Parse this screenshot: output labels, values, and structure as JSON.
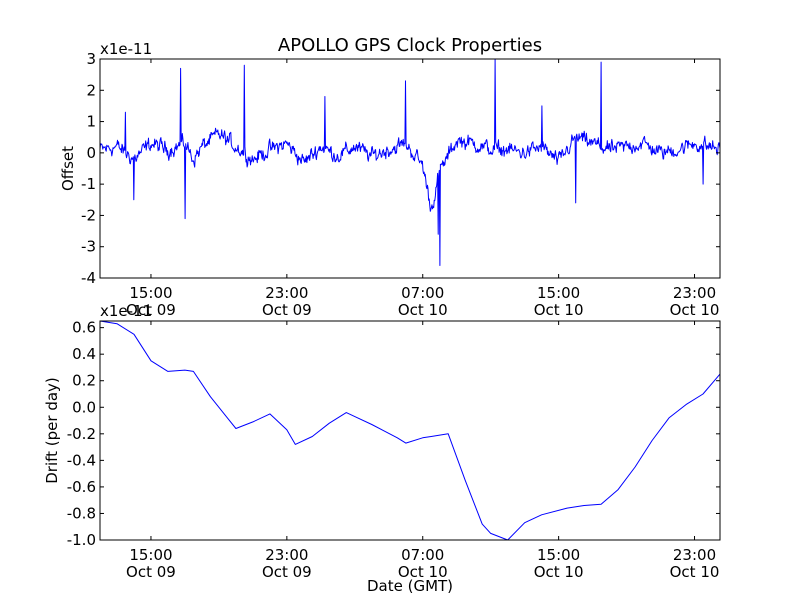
{
  "chart_data": [
    {
      "type": "line",
      "title": "APOLLO GPS Clock Properties",
      "xlabel": "",
      "ylabel": "Offset",
      "offset_text": "x1e-11",
      "xlim": [
        "2009-10-09 12:00",
        "2009-10-11 00:30"
      ],
      "ylim": [
        -4,
        3
      ],
      "yticks": [
        "-4",
        "-3",
        "-2",
        "-1",
        "0",
        "1",
        "2",
        "3"
      ],
      "xticks": [
        {
          "time": "2009-10-09 15:00",
          "line1": "15:00",
          "line2": "Oct 09"
        },
        {
          "time": "2009-10-09 23:00",
          "line1": "23:00",
          "line2": "Oct 09"
        },
        {
          "time": "2009-10-10 07:00",
          "line1": "07:00",
          "line2": "Oct 10"
        },
        {
          "time": "2009-10-10 15:00",
          "line1": "15:00",
          "line2": "Oct 10"
        },
        {
          "time": "2009-10-10 23:00",
          "line1": "23:00",
          "line2": "Oct 10"
        }
      ],
      "color": "#0000ff",
      "grid": false,
      "noise_level": 0.32,
      "series": [
        {
          "x": [
            "2009-10-09 12:00",
            "2009-10-09 13:00",
            "2009-10-09 14:00",
            "2009-10-09 15:00",
            "2009-10-09 16:00",
            "2009-10-09 17:00",
            "2009-10-09 17:30",
            "2009-10-09 18:00",
            "2009-10-09 19:00",
            "2009-10-09 20:00",
            "2009-10-09 21:00",
            "2009-10-09 22:00",
            "2009-10-09 23:00",
            "2009-10-10 00:00",
            "2009-10-10 01:00",
            "2009-10-10 02:00",
            "2009-10-10 03:00",
            "2009-10-10 04:00",
            "2009-10-10 05:00",
            "2009-10-10 06:00",
            "2009-10-10 07:00",
            "2009-10-10 07:30",
            "2009-10-10 08:00",
            "2009-10-10 09:00",
            "2009-10-10 10:00",
            "2009-10-10 11:00",
            "2009-10-10 12:00",
            "2009-10-10 13:00",
            "2009-10-10 14:00",
            "2009-10-10 15:00",
            "2009-10-10 16:00",
            "2009-10-10 17:00",
            "2009-10-10 18:00",
            "2009-10-10 19:00",
            "2009-10-10 20:00",
            "2009-10-10 21:00",
            "2009-10-10 22:00",
            "2009-10-10 23:00",
            "2009-10-11 00:00",
            "2009-10-11 00:30"
          ],
          "y": [
            0.1,
            0.2,
            -0.2,
            0.3,
            0.1,
            0.3,
            -0.2,
            0.2,
            0.6,
            0.2,
            -0.2,
            0.1,
            0.3,
            -0.3,
            0.2,
            -0.1,
            0.2,
            -0.1,
            0.1,
            0.3,
            -0.4,
            -1.8,
            -0.6,
            0.4,
            0.3,
            0.1,
            0.1,
            0.0,
            0.2,
            -0.3,
            0.5,
            0.3,
            0.1,
            0.2,
            0.3,
            0.0,
            0.1,
            0.3,
            0.2,
            0.1
          ]
        }
      ],
      "spikes": [
        {
          "x": "2009-10-09 13:30",
          "y": 1.3
        },
        {
          "x": "2009-10-09 14:00",
          "y": -1.5
        },
        {
          "x": "2009-10-09 16:45",
          "y": 2.7
        },
        {
          "x": "2009-10-09 17:00",
          "y": -2.1
        },
        {
          "x": "2009-10-09 20:30",
          "y": 2.8
        },
        {
          "x": "2009-10-10 01:15",
          "y": 1.8
        },
        {
          "x": "2009-10-10 06:00",
          "y": 2.3
        },
        {
          "x": "2009-10-10 07:55",
          "y": -2.6
        },
        {
          "x": "2009-10-10 08:00",
          "y": -3.6
        },
        {
          "x": "2009-10-10 11:15",
          "y": 3.0
        },
        {
          "x": "2009-10-10 14:00",
          "y": 1.5
        },
        {
          "x": "2009-10-10 16:00",
          "y": -1.6
        },
        {
          "x": "2009-10-10 17:30",
          "y": 2.9
        },
        {
          "x": "2009-10-10 23:30",
          "y": -1.0
        }
      ]
    },
    {
      "type": "line",
      "title": "",
      "xlabel": "Date (GMT)",
      "ylabel": "Drift (per day)",
      "offset_text": "x1e-11",
      "xlim": [
        "2009-10-09 12:00",
        "2009-10-11 00:30"
      ],
      "ylim": [
        -1.0,
        0.65
      ],
      "yticks": [
        "-1.0",
        "-0.8",
        "-0.6",
        "-0.4",
        "-0.2",
        "0.0",
        "0.2",
        "0.4",
        "0.6"
      ],
      "xticks": [
        {
          "time": "2009-10-09 15:00",
          "line1": "15:00",
          "line2": "Oct 09"
        },
        {
          "time": "2009-10-09 23:00",
          "line1": "23:00",
          "line2": "Oct 09"
        },
        {
          "time": "2009-10-10 07:00",
          "line1": "07:00",
          "line2": "Oct 10"
        },
        {
          "time": "2009-10-10 15:00",
          "line1": "15:00",
          "line2": "Oct 10"
        },
        {
          "time": "2009-10-10 23:00",
          "line1": "23:00",
          "line2": "Oct 10"
        }
      ],
      "color": "#0000ff",
      "grid": false,
      "series": [
        {
          "x": [
            "2009-10-09 12:00",
            "2009-10-09 13:00",
            "2009-10-09 14:00",
            "2009-10-09 15:00",
            "2009-10-09 16:00",
            "2009-10-09 17:00",
            "2009-10-09 17:30",
            "2009-10-09 18:30",
            "2009-10-09 19:30",
            "2009-10-09 20:00",
            "2009-10-09 21:00",
            "2009-10-09 22:00",
            "2009-10-09 23:00",
            "2009-10-09 23:30",
            "2009-10-10 00:30",
            "2009-10-10 01:30",
            "2009-10-10 02:30",
            "2009-10-10 03:00",
            "2009-10-10 04:00",
            "2009-10-10 05:30",
            "2009-10-10 06:00",
            "2009-10-10 07:00",
            "2009-10-10 07:30",
            "2009-10-10 08:30",
            "2009-10-10 09:30",
            "2009-10-10 10:30",
            "2009-10-10 11:00",
            "2009-10-10 12:00",
            "2009-10-10 13:00",
            "2009-10-10 14:00",
            "2009-10-10 15:30",
            "2009-10-10 16:30",
            "2009-10-10 17:30",
            "2009-10-10 18:30",
            "2009-10-10 19:30",
            "2009-10-10 20:30",
            "2009-10-10 21:30",
            "2009-10-10 22:30",
            "2009-10-10 23:30",
            "2009-10-11 00:30"
          ],
          "y": [
            0.65,
            0.63,
            0.55,
            0.35,
            0.27,
            0.28,
            0.27,
            0.08,
            -0.08,
            -0.16,
            -0.11,
            -0.05,
            -0.17,
            -0.28,
            -0.22,
            -0.12,
            -0.04,
            -0.07,
            -0.13,
            -0.23,
            -0.27,
            -0.23,
            -0.22,
            -0.2,
            -0.55,
            -0.88,
            -0.95,
            -1.0,
            -0.87,
            -0.81,
            -0.76,
            -0.74,
            -0.73,
            -0.62,
            -0.45,
            -0.25,
            -0.08,
            0.02,
            0.1,
            0.25
          ]
        }
      ]
    }
  ]
}
